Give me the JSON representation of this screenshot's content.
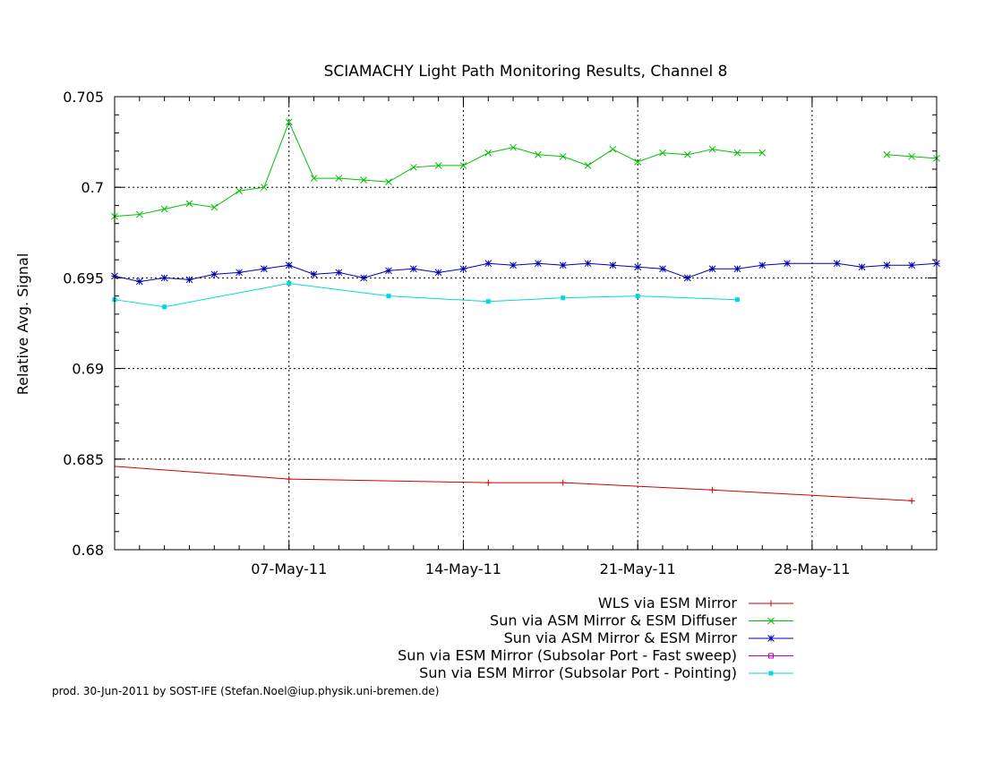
{
  "chart_data": {
    "type": "line",
    "title": "SCIAMACHY Light Path Monitoring Results, Channel 8",
    "ylabel": "Relative Avg. Signal",
    "xlabel": "",
    "xlim": [
      "2011-04-30",
      "2011-06-02"
    ],
    "ylim": [
      0.68,
      0.705
    ],
    "y_ticks": [
      "0.705",
      "0.7",
      "0.695",
      "0.69",
      "0.685",
      "0.68"
    ],
    "x_ticks": [
      "07-May-11",
      "14-May-11",
      "21-May-11",
      "28-May-11"
    ],
    "x_tick_dates": [
      "2011-05-07",
      "2011-05-14",
      "2011-05-21",
      "2011-05-28"
    ],
    "grid": true,
    "legend_position": "bottom-right",
    "series": [
      {
        "name": "WLS via ESM Mirror",
        "color": "#d00000",
        "marker": "plus",
        "x": [
          "2011-05-07",
          "2011-05-15",
          "2011-05-18",
          "2011-05-24",
          "2011-06-01"
        ],
        "y": [
          0.6839,
          0.6837,
          0.6837,
          0.6833,
          0.6827
        ],
        "line_from": {
          "x": "2011-04-30",
          "y": 0.6846
        }
      },
      {
        "name": "Sun via ASM Mirror & ESM Diffuser",
        "color": "#00c000",
        "marker": "x",
        "x": [
          "2011-04-30",
          "2011-05-01",
          "2011-05-02",
          "2011-05-03",
          "2011-05-04",
          "2011-05-05",
          "2011-05-06",
          "2011-05-07",
          "2011-05-08",
          "2011-05-09",
          "2011-05-10",
          "2011-05-11",
          "2011-05-12",
          "2011-05-13",
          "2011-05-14",
          "2011-05-15",
          "2011-05-16",
          "2011-05-17",
          "2011-05-18",
          "2011-05-19",
          "2011-05-20",
          "2011-05-21",
          "2011-05-22",
          "2011-05-23",
          "2011-05-24",
          "2011-05-25",
          "2011-05-26",
          "2011-05-31",
          "2011-06-01",
          "2011-06-02"
        ],
        "y": [
          0.6984,
          0.6985,
          0.6988,
          0.6991,
          0.6989,
          0.6998,
          0.7,
          0.7036,
          0.7005,
          0.7005,
          0.7004,
          0.7003,
          0.7011,
          0.7012,
          0.7012,
          0.7019,
          0.7022,
          0.7018,
          0.7017,
          0.7012,
          0.7021,
          0.7014,
          0.7019,
          0.7018,
          0.7021,
          0.7019,
          0.7019,
          0.7018,
          0.7017,
          0.7016
        ]
      },
      {
        "name": "Sun via ASM Mirror & ESM Mirror",
        "color": "#0000b0",
        "marker": "star",
        "x": [
          "2011-04-30",
          "2011-05-01",
          "2011-05-02",
          "2011-05-03",
          "2011-05-04",
          "2011-05-05",
          "2011-05-06",
          "2011-05-07",
          "2011-05-08",
          "2011-05-09",
          "2011-05-10",
          "2011-05-11",
          "2011-05-12",
          "2011-05-13",
          "2011-05-14",
          "2011-05-15",
          "2011-05-16",
          "2011-05-17",
          "2011-05-18",
          "2011-05-19",
          "2011-05-20",
          "2011-05-21",
          "2011-05-22",
          "2011-05-23",
          "2011-05-24",
          "2011-05-25",
          "2011-05-26",
          "2011-05-27",
          "2011-05-29",
          "2011-05-30",
          "2011-05-31",
          "2011-06-01",
          "2011-06-02"
        ],
        "y": [
          0.6951,
          0.6948,
          0.695,
          0.6949,
          0.6952,
          0.6953,
          0.6955,
          0.6957,
          0.6952,
          0.6953,
          0.695,
          0.6954,
          0.6955,
          0.6953,
          0.6955,
          0.6958,
          0.6957,
          0.6958,
          0.6957,
          0.6958,
          0.6957,
          0.6956,
          0.6955,
          0.695,
          0.6955,
          0.6955,
          0.6957,
          0.6958,
          0.6958,
          0.6956,
          0.6957,
          0.6957,
          0.6958
        ]
      },
      {
        "name": "Sun via ESM Mirror (Subsolar Port - Fast sweep)",
        "color": "#c000c0",
        "marker": "square-open",
        "x": [],
        "y": []
      },
      {
        "name": "Sun via ESM Mirror (Subsolar Port - Pointing)",
        "color": "#00d8e0",
        "marker": "square",
        "x": [
          "2011-04-30",
          "2011-05-02",
          "2011-05-07",
          "2011-05-11",
          "2011-05-15",
          "2011-05-18",
          "2011-05-21",
          "2011-05-25"
        ],
        "y": [
          0.6938,
          0.6934,
          0.6947,
          0.694,
          0.6937,
          0.6939,
          0.694,
          0.6938
        ]
      }
    ]
  },
  "footer": "prod. 30-Jun-2011 by SOST-IFE (Stefan.Noel@iup.physik.uni-bremen.de)"
}
